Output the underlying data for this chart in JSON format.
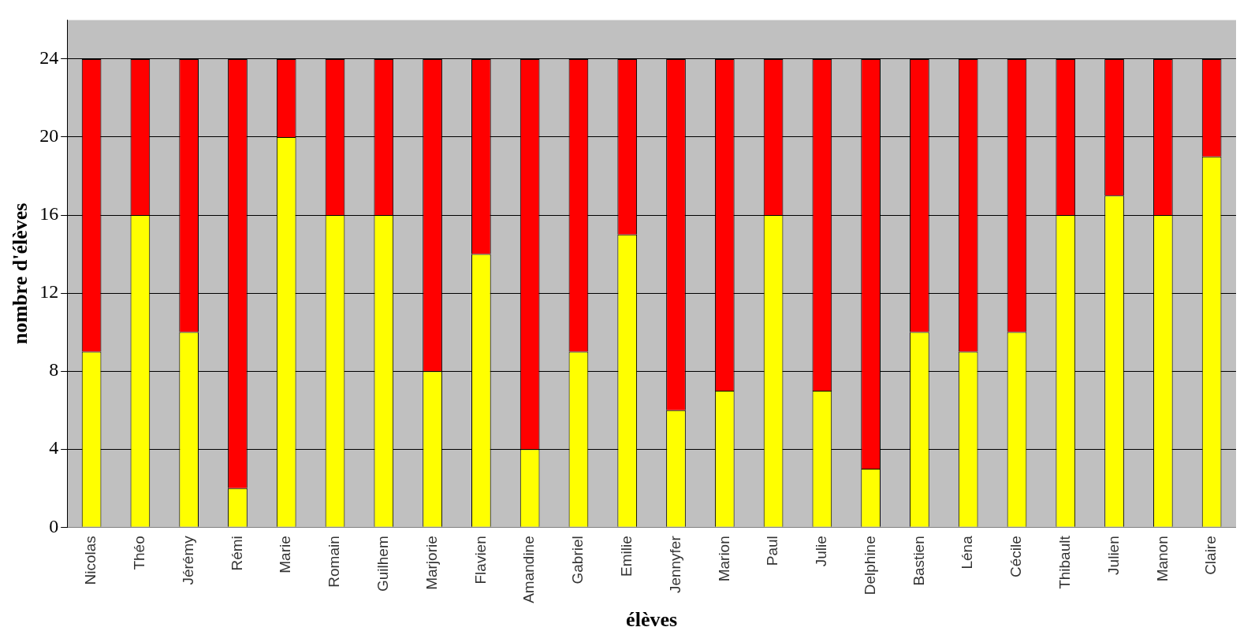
{
  "chart_data": {
    "type": "bar",
    "xlabel": "élèves",
    "ylabel": "nombre d'élèves",
    "categories": [
      "Nicolas",
      "Théo",
      "Jérémy",
      "Rémi",
      "Marie",
      "Romain",
      "Guilhem",
      "Marjorie",
      "Flavien",
      "Amandine",
      "Gabriel",
      "Emilie",
      "Jennyfer",
      "Marion",
      "Paul",
      "Julie",
      "Delphine",
      "Bastien",
      "Léna",
      "Cécile",
      "Thibault",
      "Julien",
      "Manon",
      "Claire"
    ],
    "stacked": true,
    "ylim": [
      0,
      26
    ],
    "yticks": [
      0,
      4,
      8,
      12,
      16,
      20,
      24
    ],
    "grid": "y",
    "legend": false,
    "series": [
      {
        "color": "#ffff00",
        "values": [
          9,
          16,
          10,
          2,
          20,
          16,
          16,
          8,
          14,
          4,
          9,
          15,
          6,
          7,
          16,
          7,
          3,
          10,
          9,
          10,
          16,
          17,
          16,
          19
        ]
      },
      {
        "color": "#ff0000",
        "values": [
          15,
          8,
          14,
          22,
          4,
          8,
          8,
          16,
          10,
          20,
          15,
          9,
          18,
          17,
          8,
          17,
          21,
          14,
          15,
          14,
          8,
          7,
          8,
          5
        ]
      }
    ]
  }
}
